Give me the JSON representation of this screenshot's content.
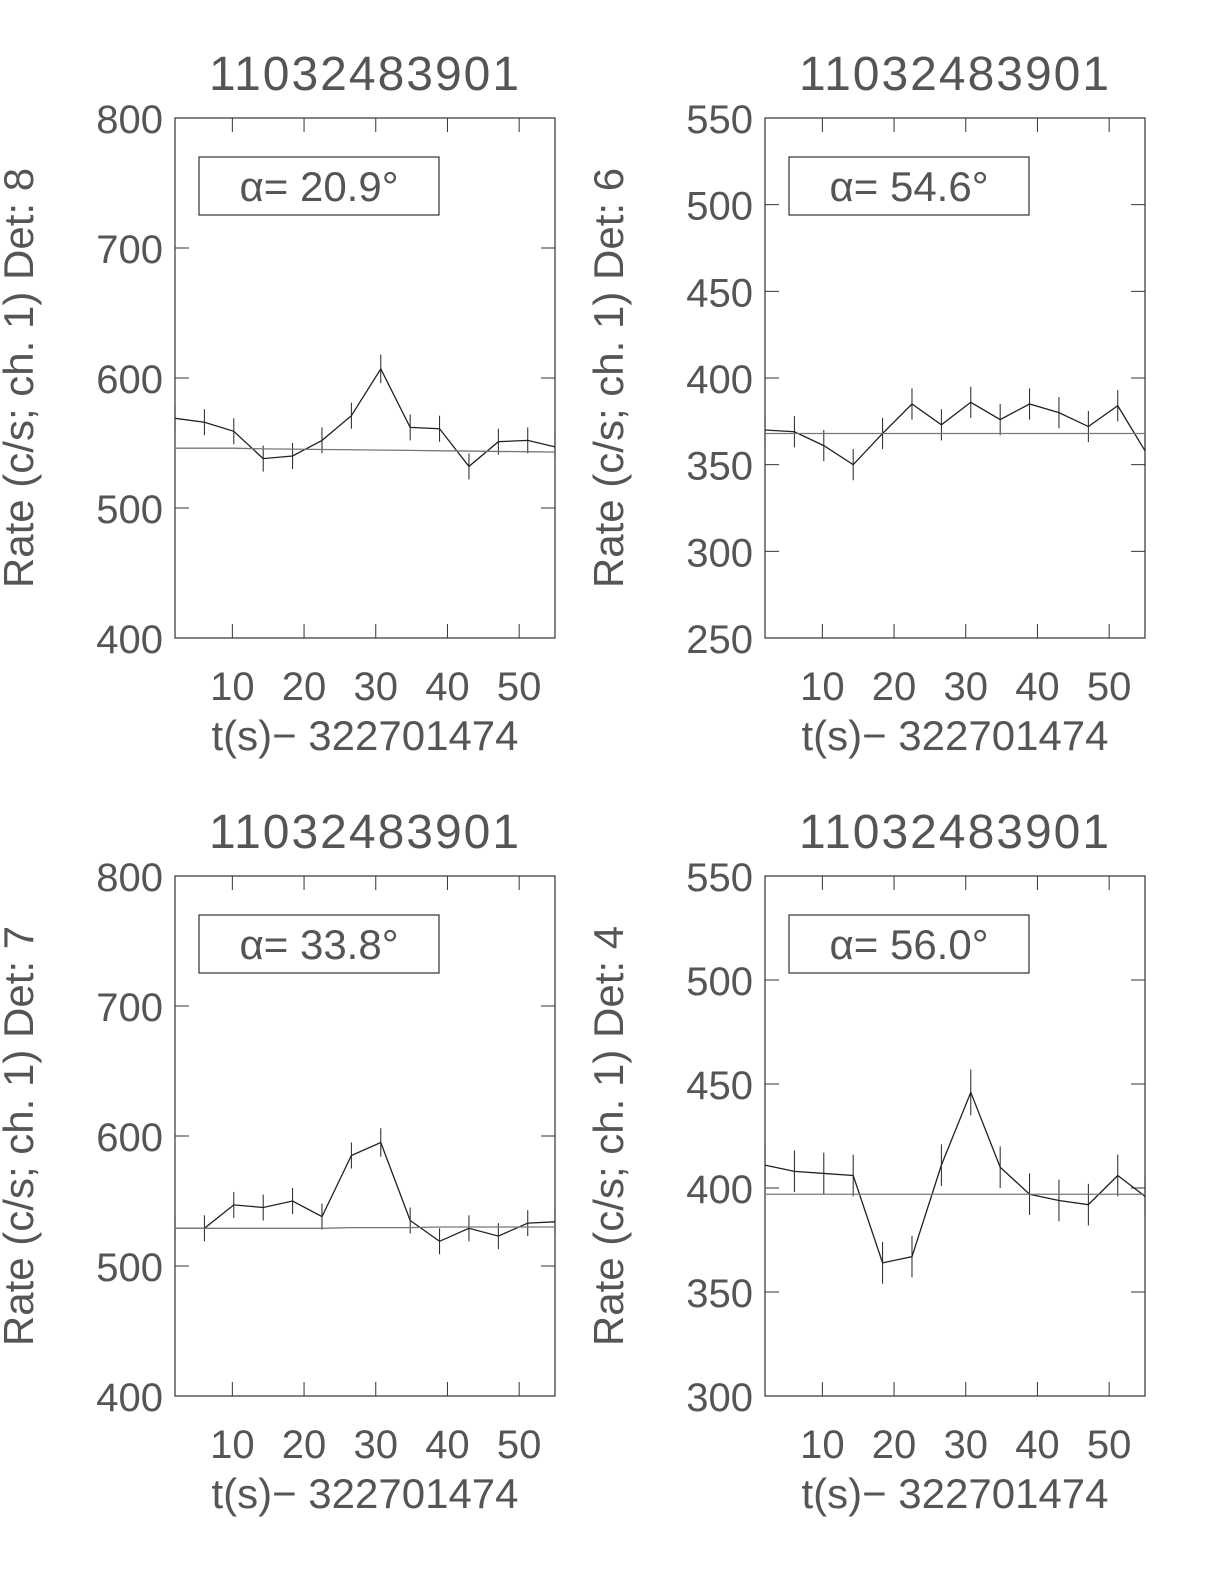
{
  "chart_data": [
    {
      "type": "line",
      "title": "11032483901",
      "xlabel": "t(s)− 322701474",
      "ylabel": "Rate (c/s; ch. 1) Det: 8",
      "annotation": "α= 20.9°",
      "x": [
        2,
        6.1,
        10.2,
        14.3,
        18.4,
        22.5,
        26.6,
        30.7,
        34.8,
        38.9,
        43,
        47.1,
        51.2,
        55
      ],
      "xlim": [
        2,
        55
      ],
      "xticks": [
        10,
        20,
        30,
        40,
        50
      ],
      "ylim": [
        400,
        800
      ],
      "yticks": [
        400,
        500,
        600,
        700,
        800
      ],
      "series": [
        {
          "color": "#222222",
          "values": [
            569,
            566,
            559,
            538,
            540,
            552,
            571,
            607,
            562,
            561,
            532,
            551,
            552,
            547
          ],
          "errors": [
            10,
            10,
            10,
            10,
            10,
            10,
            10,
            11,
            10,
            10,
            10,
            10,
            10,
            10
          ]
        },
        {
          "color": "#777777",
          "values": [
            546,
            546,
            546,
            545.5,
            545.3,
            545,
            544.8,
            544.5,
            544.3,
            544,
            543.8,
            543.5,
            543.3,
            543
          ]
        }
      ]
    },
    {
      "type": "line",
      "title": "11032483901",
      "xlabel": "t(s)− 322701474",
      "ylabel": "Rate (c/s; ch. 1) Det: 6",
      "annotation": "α= 54.6°",
      "x": [
        2,
        6.1,
        10.2,
        14.3,
        18.4,
        22.5,
        26.6,
        30.7,
        34.8,
        38.9,
        43,
        47.1,
        51.2,
        55
      ],
      "xlim": [
        2,
        55
      ],
      "xticks": [
        10,
        20,
        30,
        40,
        50
      ],
      "ylim": [
        250,
        550
      ],
      "yticks": [
        250,
        300,
        350,
        400,
        450,
        500,
        550
      ],
      "series": [
        {
          "color": "#222222",
          "values": [
            370,
            369,
            361,
            350,
            368,
            385,
            373,
            386,
            376,
            385,
            380,
            372,
            384,
            358
          ],
          "errors": [
            9,
            9,
            9,
            9,
            9,
            9,
            9,
            9,
            9,
            9,
            9,
            9,
            9,
            9
          ]
        },
        {
          "color": "#777777",
          "values": [
            368,
            368,
            368,
            368,
            368,
            368,
            368,
            368,
            368,
            368,
            368,
            368,
            368,
            368
          ]
        }
      ]
    },
    {
      "type": "line",
      "title": "11032483901",
      "xlabel": "t(s)− 322701474",
      "ylabel": "Rate (c/s; ch. 1) Det: 7",
      "annotation": "α= 33.8°",
      "x": [
        2,
        6.1,
        10.2,
        14.3,
        18.4,
        22.5,
        26.6,
        30.7,
        34.8,
        38.9,
        43,
        47.1,
        51.2,
        55
      ],
      "xlim": [
        2,
        55
      ],
      "xticks": [
        10,
        20,
        30,
        40,
        50
      ],
      "ylim": [
        400,
        800
      ],
      "yticks": [
        400,
        500,
        600,
        700,
        800
      ],
      "series": [
        {
          "color": "#222222",
          "values": [
            529,
            529,
            547,
            545,
            550,
            538,
            585,
            595,
            535,
            519,
            529,
            523,
            533,
            534
          ],
          "errors": [
            10,
            10,
            10,
            10,
            10,
            10,
            10,
            11,
            10,
            10,
            10,
            10,
            10,
            10
          ]
        },
        {
          "color": "#777777",
          "values": [
            529,
            529,
            529,
            529,
            529,
            529,
            529.5,
            529.5,
            529.5,
            530,
            530,
            530,
            530,
            530
          ]
        }
      ]
    },
    {
      "type": "line",
      "title": "11032483901",
      "xlabel": "t(s)− 322701474",
      "ylabel": "Rate (c/s; ch. 1) Det: 4",
      "annotation": "α= 56.0°",
      "x": [
        2,
        6.1,
        10.2,
        14.3,
        18.4,
        22.5,
        26.6,
        30.7,
        34.8,
        38.9,
        43,
        47.1,
        51.2,
        55
      ],
      "xlim": [
        2,
        55
      ],
      "xticks": [
        10,
        20,
        30,
        40,
        50
      ],
      "ylim": [
        300,
        550
      ],
      "yticks": [
        300,
        350,
        400,
        450,
        500,
        550
      ],
      "series": [
        {
          "color": "#222222",
          "values": [
            411,
            408,
            407,
            406,
            364,
            367,
            411,
            446,
            410,
            397,
            394,
            392,
            406,
            396
          ],
          "errors": [
            10,
            10,
            10,
            10,
            10,
            10,
            10,
            11,
            10,
            10,
            10,
            10,
            10,
            10
          ]
        },
        {
          "color": "#777777",
          "values": [
            397,
            397,
            397,
            397,
            397,
            397,
            397,
            397,
            397,
            397,
            397,
            397,
            397,
            397
          ]
        }
      ]
    }
  ]
}
